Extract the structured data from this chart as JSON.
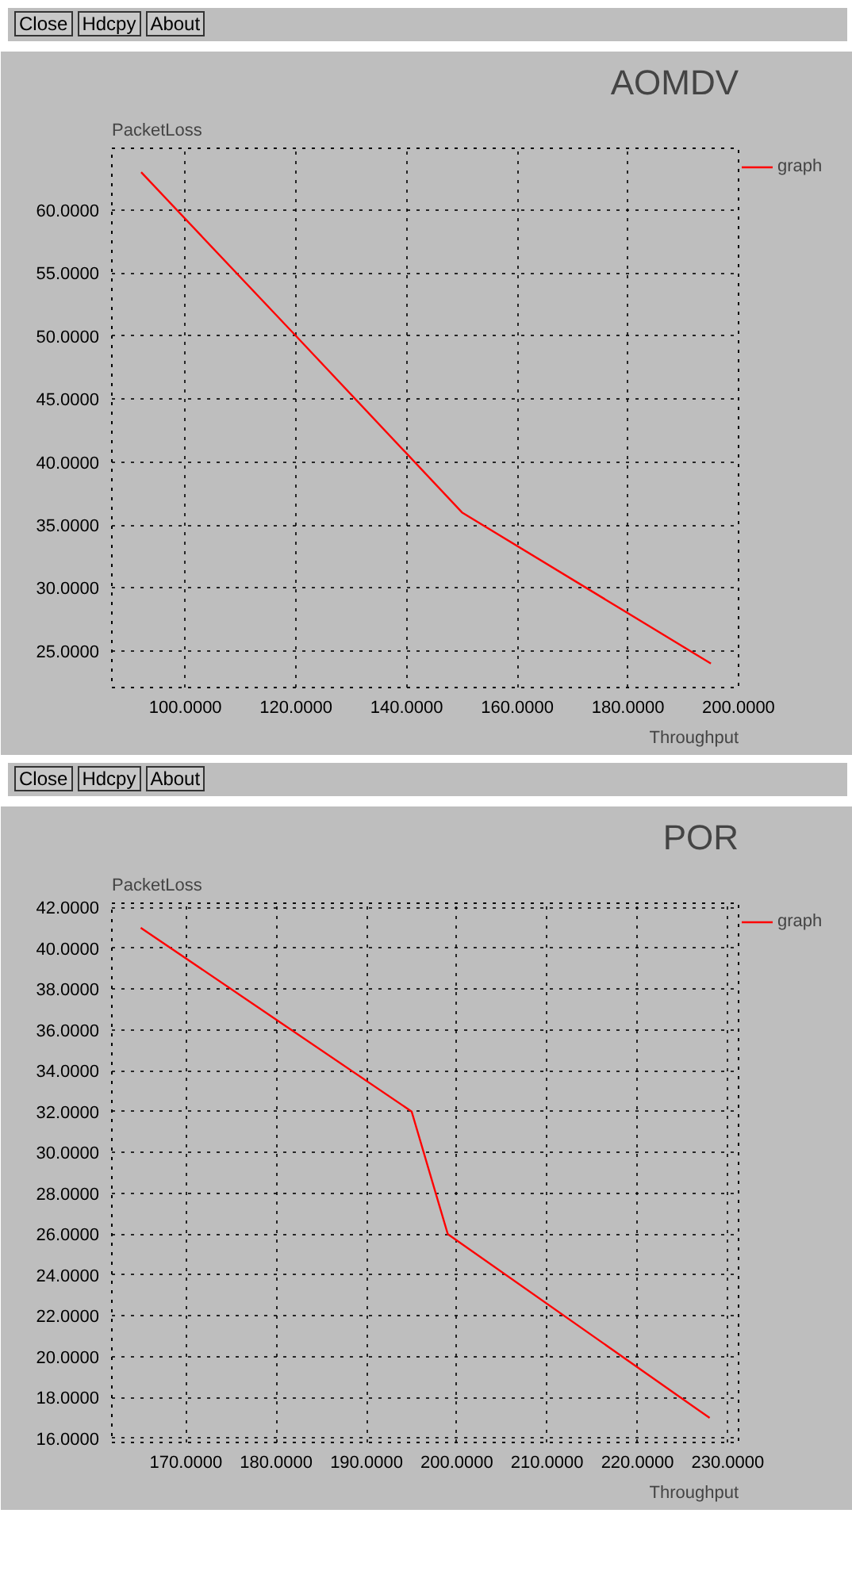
{
  "chart_data": [
    {
      "type": "line",
      "title": "AOMDV",
      "xlabel": "Throughput",
      "ylabel": "PacketLoss",
      "annotations": [
        "Close",
        "Hdcpy",
        "About"
      ],
      "x": [
        92,
        120,
        150,
        195
      ],
      "series": [
        {
          "name": "graph",
          "color": "#ff0000",
          "values": [
            63,
            50,
            36,
            24
          ]
        }
      ],
      "xlim": [
        86.7,
        200
      ],
      "ylim": [
        22.1,
        64.9
      ],
      "xticks": [
        {
          "value": 100,
          "label": "100.0000"
        },
        {
          "value": 120,
          "label": "120.0000"
        },
        {
          "value": 140,
          "label": "140.0000"
        },
        {
          "value": 160,
          "label": "160.0000"
        },
        {
          "value": 180,
          "label": "180.0000"
        },
        {
          "value": 200,
          "label": "200.0000"
        }
      ],
      "yticks": [
        {
          "value": 25,
          "label": "25.0000"
        },
        {
          "value": 30,
          "label": "30.0000"
        },
        {
          "value": 35,
          "label": "35.0000"
        },
        {
          "value": 40,
          "label": "40.0000"
        },
        {
          "value": 45,
          "label": "45.0000"
        },
        {
          "value": 50,
          "label": "50.0000"
        },
        {
          "value": 55,
          "label": "55.0000"
        },
        {
          "value": 60,
          "label": "60.0000"
        }
      ],
      "grid": true,
      "legend": "top right",
      "line_style": "solid"
    },
    {
      "type": "line",
      "title": "POR",
      "xlabel": "Throughput",
      "ylabel": "PacketLoss",
      "annotations": [
        "Close",
        "Hdcpy",
        "About"
      ],
      "x": [
        165,
        195,
        199,
        228
      ],
      "series": [
        {
          "name": "graph",
          "color": "#ff0000",
          "values": [
            41,
            32,
            26,
            17
          ]
        }
      ],
      "xlim": [
        161.8,
        231.2
      ],
      "ylim": [
        15.8,
        42.2
      ],
      "xticks": [
        {
          "value": 170,
          "label": "170.0000"
        },
        {
          "value": 180,
          "label": "180.0000"
        },
        {
          "value": 190,
          "label": "190.0000"
        },
        {
          "value": 200,
          "label": "200.0000"
        },
        {
          "value": 210,
          "label": "210.0000"
        },
        {
          "value": 220,
          "label": "220.0000"
        },
        {
          "value": 230,
          "label": "230.0000"
        }
      ],
      "yticks": [
        {
          "value": 16,
          "label": "16.0000"
        },
        {
          "value": 18,
          "label": "18.0000"
        },
        {
          "value": 20,
          "label": "20.0000"
        },
        {
          "value": 22,
          "label": "22.0000"
        },
        {
          "value": 24,
          "label": "24.0000"
        },
        {
          "value": 26,
          "label": "26.0000"
        },
        {
          "value": 28,
          "label": "28.0000"
        },
        {
          "value": 30,
          "label": "30.0000"
        },
        {
          "value": 32,
          "label": "32.0000"
        },
        {
          "value": 34,
          "label": "34.0000"
        },
        {
          "value": 36,
          "label": "36.0000"
        },
        {
          "value": 38,
          "label": "38.0000"
        },
        {
          "value": 40,
          "label": "40.0000"
        },
        {
          "value": 42,
          "label": "42.0000"
        }
      ],
      "grid": true,
      "legend": "top right",
      "line_style": "solid"
    }
  ]
}
